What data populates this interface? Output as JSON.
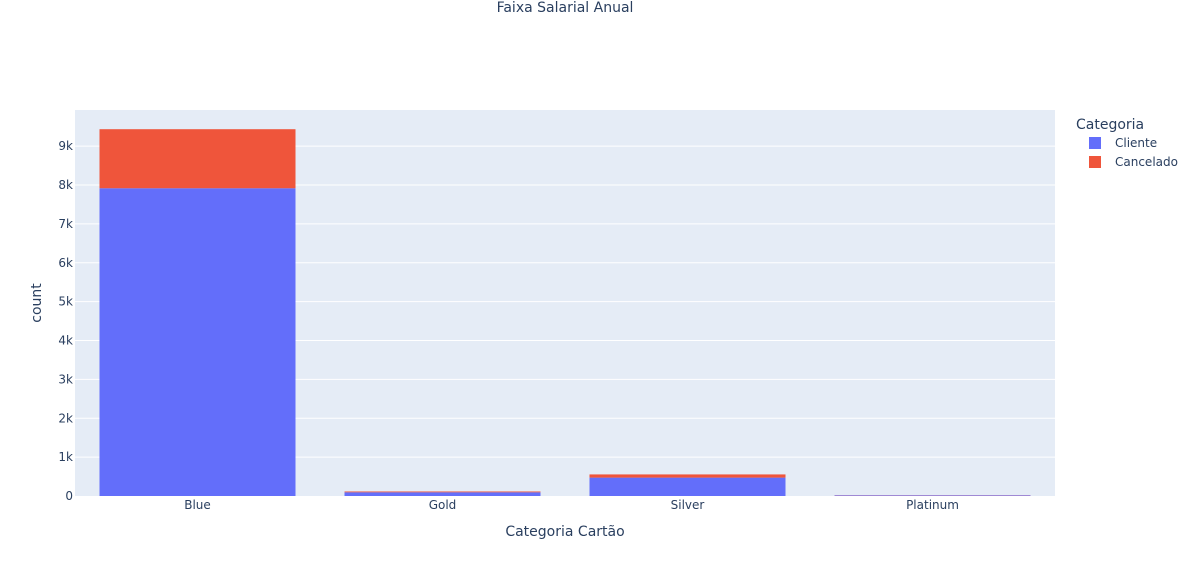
{
  "chart_data": {
    "type": "bar",
    "barmode": "stack",
    "title": "Faixa Salarial Anual",
    "xlabel": "Categoria Cartão",
    "ylabel": "count",
    "categories": [
      "Blue",
      "Gold",
      "Silver",
      "Platinum"
    ],
    "series": [
      {
        "name": "Cliente",
        "color": "#636efa",
        "values": [
          7917,
          95,
          473,
          15
        ]
      },
      {
        "name": "Cancelado",
        "color": "#ef553b",
        "values": [
          1519,
          21,
          82,
          5
        ]
      }
    ],
    "ylim": [
      0,
      9930
    ],
    "yticks": [
      0,
      1000,
      2000,
      3000,
      4000,
      5000,
      6000,
      7000,
      8000,
      9000
    ],
    "ytick_labels": [
      "0",
      "1k",
      "2k",
      "3k",
      "4k",
      "5k",
      "6k",
      "7k",
      "8k",
      "9k"
    ],
    "grid": true,
    "legend": {
      "title": "Categoria",
      "placement": "top-right"
    },
    "plot_bg": "#e5ecf6"
  }
}
